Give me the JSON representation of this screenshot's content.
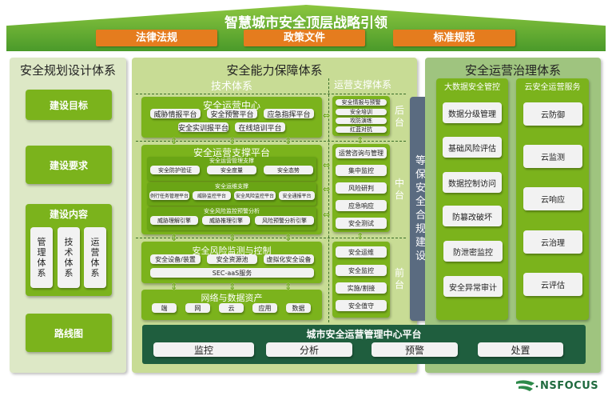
{
  "header": {
    "title": "智慧城市安全顶层战略引领",
    "pillars": [
      "法律法规",
      "政策文件",
      "标准规范"
    ]
  },
  "left": {
    "title": "安全规划设计体系",
    "goal": "建设目标",
    "requirement": "建设要求",
    "content": {
      "title": "建设内容",
      "items": [
        "管理体系",
        "技术体系",
        "运营体系"
      ]
    },
    "roadmap": "路线图"
  },
  "middle": {
    "title": "安全能力保障体系",
    "tech_title": "技术体系",
    "ops_title": "运营支撑体系",
    "soc": {
      "title": "安全运营中心",
      "items": [
        "威胁情报平台",
        "安全预警平台",
        "应急指挥平台",
        "安全实训报平台",
        "在线培训平台"
      ]
    },
    "platform": {
      "title": "安全运营支撑平台",
      "groups": [
        {
          "title": "安全运营管理支撑",
          "items": [
            "安全防护验证",
            "安全度量",
            "安全态势"
          ]
        },
        {
          "title": "安全运维支撑",
          "items": [
            "例行任务管理平台",
            "威胁监控平台",
            "安全风险监控平台",
            "安全通报平台"
          ]
        },
        {
          "title": "安全风险监控预警分析",
          "items": [
            "威胁理解引擎",
            "威胁推理引擎",
            "风险预警分析引擎"
          ]
        }
      ]
    },
    "risk": {
      "title": "安全风险监测与控制",
      "items": [
        "安全设备/装置",
        "安全资源池",
        "虚拟化安全设备"
      ],
      "service": "SEC-aaS服务"
    },
    "assets": {
      "title": "网络与数据资产",
      "items": [
        "端",
        "网",
        "云",
        "应用",
        "数据"
      ]
    },
    "ops": {
      "back": {
        "label": "后台",
        "items": [
          "安全情报与预警",
          "安全培训",
          "攻防演练",
          "红蓝对抗"
        ]
      },
      "mid": {
        "label": "中台",
        "items": [
          "运营咨询与管理",
          "集中监控",
          "风险研判",
          "应急响应",
          "安全测试"
        ]
      },
      "front": {
        "label": "前台",
        "items": [
          "安全运维",
          "安全监控",
          "实施/割接",
          "安全值守"
        ]
      }
    },
    "compliance": "等保安全合规建设"
  },
  "right": {
    "title": "安全运营治理体系",
    "bigdata": {
      "title": "大数据安全管控",
      "items": [
        "数据分级管理",
        "基础风险评估",
        "数据控制访问",
        "防篡改破坏",
        "防泄密监控",
        "安全异常审计"
      ]
    },
    "cloud": {
      "title": "云安全运营服务",
      "items": [
        "云防御",
        "云监测",
        "云响应",
        "云治理",
        "云评估"
      ]
    }
  },
  "bottom": {
    "title": "城市安全运营管理中心平台",
    "items": [
      "监控",
      "分析",
      "预警",
      "处置"
    ]
  },
  "logo": "NSFOCUS",
  "colors": {
    "green": "#7bb31c",
    "orange": "#e57c1e",
    "dark_green": "#1f5e3e",
    "slate": "#5a6b80"
  }
}
